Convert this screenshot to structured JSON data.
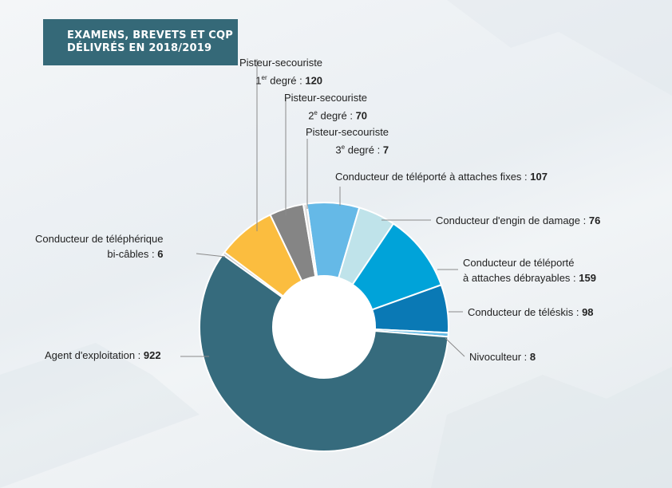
{
  "title": {
    "line1": "EXAMENS, BREVETS ET CQP",
    "line2": "DÉLIVRÉS EN 2018/2019"
  },
  "chart_data": {
    "type": "pie",
    "title": "EXAMENS, BREVETS ET CQP DÉLIVRÉS EN 2018/2019",
    "slices": [
      {
        "label": "Conducteur de téléporté à attaches fixes",
        "value": 107,
        "color": "#65b9e7"
      },
      {
        "label": "Conducteur d'engin de damage",
        "value": 76,
        "color": "#bfe3ea"
      },
      {
        "label": "Conducteur de téléporté à attaches débrayables",
        "value": 159,
        "color": "#00a3d9"
      },
      {
        "label": "Conducteur de téléskis",
        "value": 98,
        "color": "#0a79b5"
      },
      {
        "label": "Nivoculteur",
        "value": 8,
        "color": "#62b9e4"
      },
      {
        "label": "Agent d'exploitation",
        "value": 922,
        "color": "#366b7d"
      },
      {
        "label": "Conducteur de téléphérique bi-câbles",
        "value": 6,
        "color": "#c9c9c9"
      },
      {
        "label": "Pisteur-secouriste 1er degré",
        "value": 120,
        "color": "#fbbd3f"
      },
      {
        "label": "Pisteur-secouriste 2e degré",
        "value": 70,
        "color": "#858585"
      },
      {
        "label": "Pisteur-secouriste 3e degré",
        "value": 7,
        "color": "#dddddd"
      }
    ]
  },
  "labels": {
    "ps1_name": "Pisteur-secouriste",
    "ps1_deg": "1",
    "ps1_sup": "er",
    "ps1_deg_rest": " degré : ",
    "ps1_val": "120",
    "ps2_name": "Pisteur-secouriste",
    "ps2_deg": "2",
    "ps2_sup": "e",
    "ps2_deg_rest": " degré : ",
    "ps2_val": "70",
    "ps3_name": "Pisteur-secouriste",
    "ps3_deg": "3",
    "ps3_sup": "e",
    "ps3_deg_rest": " degré : ",
    "ps3_val": "7",
    "fixes_name": "Conducteur de téléporté à attaches fixes : ",
    "fixes_val": "107",
    "damage_name": "Conducteur d'engin de damage : ",
    "damage_val": "76",
    "debray_name1": "Conducteur de téléporté",
    "debray_name2": "à attaches débrayables : ",
    "debray_val": "159",
    "teleskis_name": "Conducteur de téléskis : ",
    "teleskis_val": "98",
    "nivo_name": "Nivoculteur : ",
    "nivo_val": "8",
    "agent_name": "Agent d'exploitation : ",
    "agent_val": "922",
    "biciable_name1": "Conducteur de téléphérique",
    "biciable_name2": "bi-câbles : ",
    "biciable_val": "6"
  }
}
